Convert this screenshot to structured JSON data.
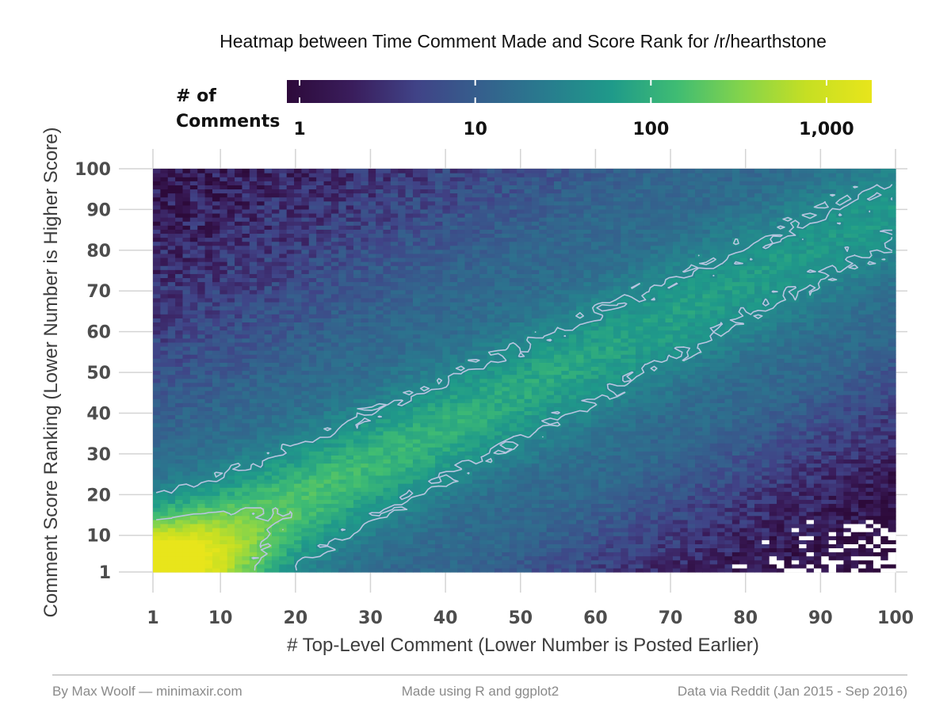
{
  "chart_data": {
    "type": "heatmap",
    "title": "Heatmap between Time Comment Made and Score Rank for /r/hearthstone",
    "xlabel": "# Top-Level Comment (Lower Number is Posted Earlier)",
    "ylabel": "Comment Score Ranking (Lower Number is Higher Score)",
    "x_ticks": [
      "1",
      "10",
      "20",
      "30",
      "40",
      "50",
      "60",
      "70",
      "80",
      "90",
      "100"
    ],
    "y_ticks": [
      "1",
      "10",
      "20",
      "30",
      "40",
      "50",
      "60",
      "70",
      "80",
      "90",
      "100"
    ],
    "xlim": [
      1,
      100
    ],
    "ylim": [
      1,
      100
    ],
    "grid": true,
    "color_scale": {
      "title_lines": [
        "# of",
        "Comments"
      ],
      "type": "log",
      "ticks": [
        "1",
        "10",
        "100",
        "1,000"
      ],
      "range": [
        1,
        1500
      ],
      "colors": [
        "#2d0a3a",
        "#3a1d5c",
        "#404387",
        "#35608d",
        "#287c8e",
        "#1f9a8a",
        "#3fbc73",
        "#84d44b",
        "#c6df23",
        "#e8e51b"
      ],
      "legend_position": "top"
    },
    "contour_color": "#b8c4e0",
    "contour_levels": [
      40,
      200
    ],
    "description_of_values": "Counts peak (~1,500) near x=1,y=1 and follow a diagonal ridge (y ≈ 0.9x) toward the upper right; sparse counts (<10) in the upper-left corner and the lower-right corner."
  },
  "footer": {
    "left": "By Max Woolf — minimaxir.com",
    "center": "Made using R and ggplot2",
    "right": "Data via Reddit (Jan 2015 - Sep 2016)"
  }
}
